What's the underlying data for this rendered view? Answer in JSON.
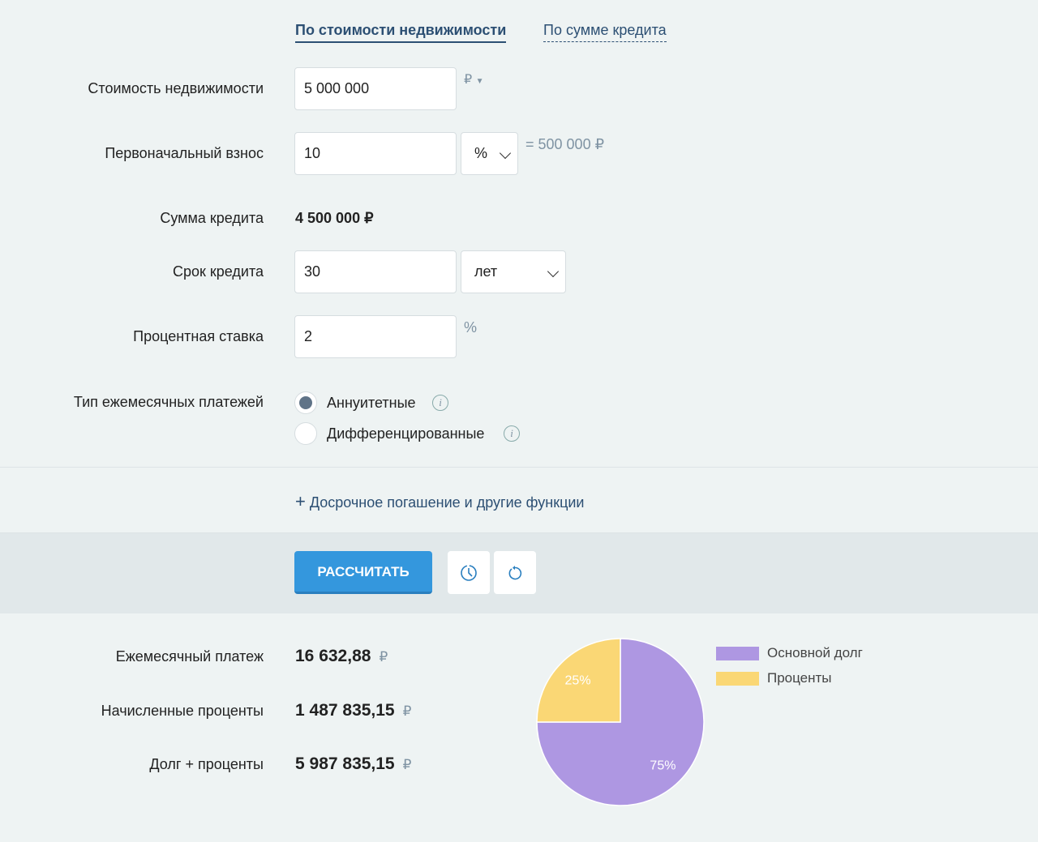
{
  "tabs": [
    "По стоимости недвижимости",
    "По сумме кредита"
  ],
  "fields": {
    "price": {
      "label": "Стоимость недвижимости",
      "value": "5 000 000",
      "currency": "₽"
    },
    "down": {
      "label": "Первоначальный взнос",
      "value": "10",
      "unit": "%",
      "computed": "= 500 000 ₽"
    },
    "loan": {
      "label": "Сумма кредита",
      "value": "4 500 000 ₽"
    },
    "term": {
      "label": "Срок кредита",
      "value": "30",
      "unit": "лет"
    },
    "rate": {
      "label": "Процентная ставка",
      "value": "2",
      "unit": "%"
    },
    "type": {
      "label": "Тип ежемесячных платежей",
      "options": [
        "Аннуитетные",
        "Дифференцированные"
      ],
      "selected": 0,
      "info": "i"
    }
  },
  "extra_link": "Досрочное погашение и другие функции",
  "calc_button": "РАССЧИТАТЬ",
  "results": [
    {
      "label": "Ежемесячный платеж",
      "value": "16 632,88",
      "cur": "₽"
    },
    {
      "label": "Начисленные проценты",
      "value": "1 487 835,15",
      "cur": "₽"
    },
    {
      "label": "Долг + проценты",
      "value": "5 987 835,15",
      "cur": "₽"
    }
  ],
  "chart_data": {
    "type": "pie",
    "slices": [
      {
        "name": "Основной долг",
        "value": 75,
        "label": "75%",
        "color": "#ae97e2"
      },
      {
        "name": "Проценты",
        "value": 25,
        "label": "25%",
        "color": "#fad775"
      }
    ],
    "legend": "right"
  }
}
